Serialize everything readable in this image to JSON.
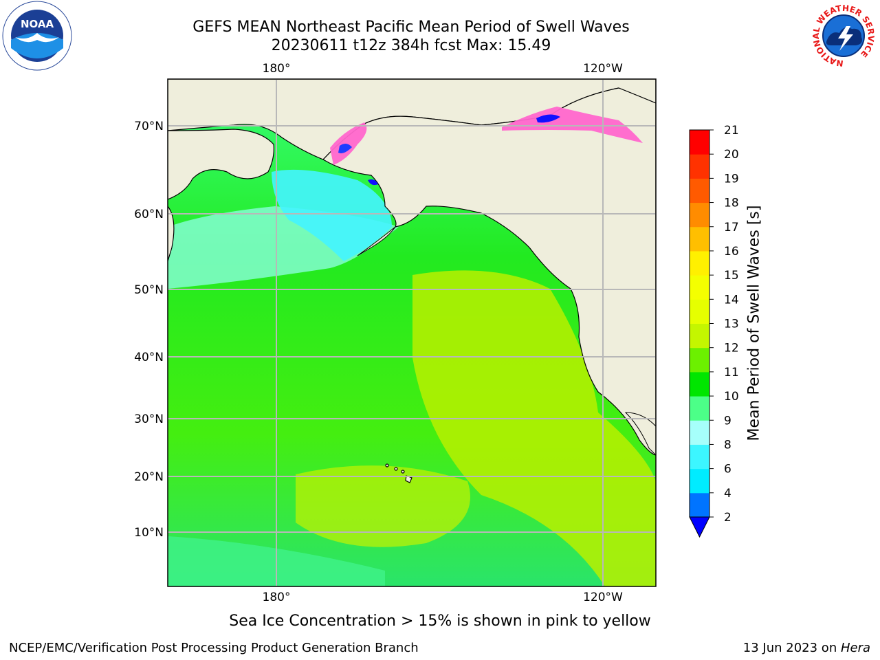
{
  "title": {
    "line1": "GEFS MEAN Northeast Pacific Mean Period of Swell Waves",
    "line2": "20230611 t12z 384h fcst   Max: 15.49"
  },
  "map": {
    "lon_labels": [
      "180°",
      "120°W"
    ],
    "lat_labels": [
      "70°N",
      "60°N",
      "50°N",
      "40°N",
      "30°N",
      "20°N",
      "10°N"
    ],
    "land_color": "#efeedc",
    "grid_color": "#b8b8b8"
  },
  "colorbar": {
    "label": "Mean Period of Swell Waves [s]",
    "ticks": [
      "2",
      "4",
      "6",
      "8",
      "9",
      "10",
      "11",
      "12",
      "13",
      "14",
      "15",
      "16",
      "17",
      "18",
      "19",
      "20",
      "21"
    ],
    "colors": [
      "#0074ff",
      "#00ecff",
      "#3cf6ff",
      "#a6fffb",
      "#4cff88",
      "#00e600",
      "#6cf000",
      "#c4f600",
      "#e6ff00",
      "#f4ff00",
      "#fff000",
      "#ffbf00",
      "#ff8c00",
      "#ff5a00",
      "#ff3200",
      "#ff0000"
    ],
    "under_color": "#0000ff"
  },
  "ice_note": "Sea Ice Concentration > 15% is shown in pink to yellow",
  "footer": {
    "left": "NCEP/EMC/Verification Post Processing Product Generation Branch",
    "date": "13 Jun 2023 on ",
    "host": "Hera"
  },
  "logos": {
    "noaa": "NOAA",
    "nws_ring": "NATIONAL WEATHER SERVICE"
  }
}
